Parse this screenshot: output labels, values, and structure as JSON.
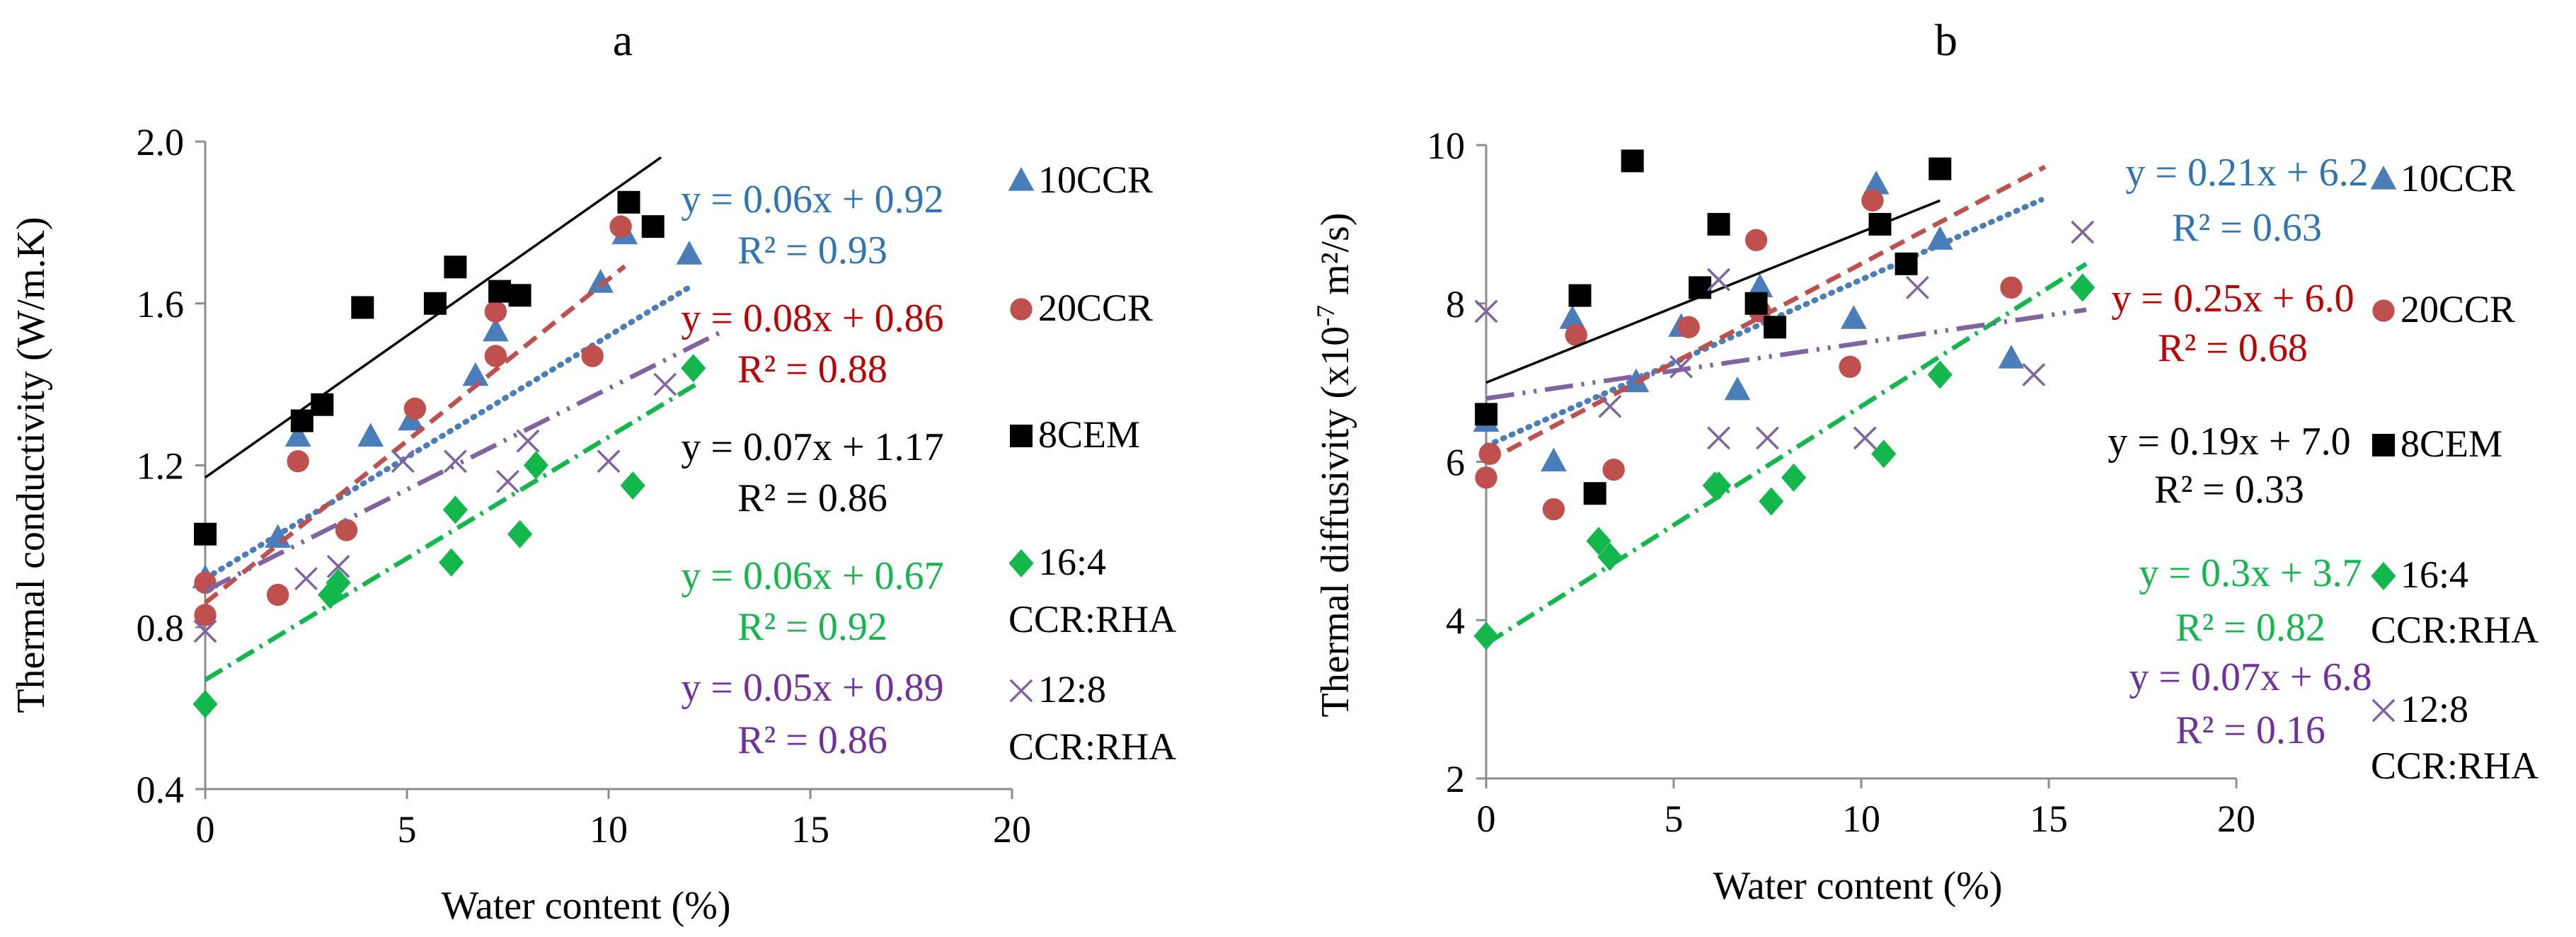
{
  "figure": {
    "panel_a_label": "a",
    "panel_b_label": "b",
    "colors": {
      "10CCR": "#4a7ebb",
      "20CCR": "#c0504d",
      "8CEM": "#000000",
      "16:4 CCR:RHA": "#12b84c",
      "12:8 CCR:RHA": "#8064a2",
      "eq_10CCR": "#2e75b6",
      "eq_20CCR": "#c00000",
      "eq_8CEM": "#000000",
      "eq_164": "#12b84c",
      "eq_128": "#7030a0",
      "axis": "#8c8c8c"
    }
  },
  "chart_data": [
    {
      "type": "scatter",
      "panel": "a",
      "title": "a",
      "xlabel": "Water content (%)",
      "ylabel": "Thermal conductivity (W/m.K)",
      "xlim": [
        0,
        20
      ],
      "ylim": [
        0.4,
        2.0
      ],
      "xticks": [
        "0",
        "5",
        "10",
        "15",
        "20"
      ],
      "yticks": [
        "0.4",
        "0.8",
        "1.2",
        "1.6",
        "2.0"
      ],
      "grid": false,
      "series": [
        {
          "name": "10CCR",
          "legend": [
            "10CCR"
          ],
          "marker": "triangle",
          "color": "#4a7ebb",
          "points": [
            [
              0,
              0.92
            ],
            [
              1.8,
              1.02
            ],
            [
              2.3,
              1.27
            ],
            [
              4.1,
              1.27
            ],
            [
              5.1,
              1.31
            ],
            [
              6.7,
              1.42
            ],
            [
              7.2,
              1.53
            ],
            [
              9.8,
              1.65
            ],
            [
              10.4,
              1.77
            ],
            [
              12.0,
              1.72
            ]
          ],
          "trend": {
            "style": "dotted",
            "slope": 0.06,
            "intercept": 0.92,
            "x": [
              0,
              12.1
            ],
            "eq": "y = 0.06x + 0.92",
            "r2": "R² = 0.93",
            "eq_color": "#2e75b6"
          }
        },
        {
          "name": "20CCR",
          "legend": [
            "20CCR"
          ],
          "marker": "circle",
          "color": "#c0504d",
          "points": [
            [
              0,
              0.83
            ],
            [
              0,
              0.91
            ],
            [
              1.8,
              0.88
            ],
            [
              2.3,
              1.21
            ],
            [
              3.5,
              1.04
            ],
            [
              5.2,
              1.34
            ],
            [
              7.2,
              1.47
            ],
            [
              7.2,
              1.58
            ],
            [
              9.6,
              1.47
            ],
            [
              10.3,
              1.79
            ]
          ],
          "trend": {
            "style": "dashed",
            "slope": 0.08,
            "intercept": 0.86,
            "x": [
              0,
              10.4
            ],
            "eq": "y = 0.08x + 0.86",
            "r2": "R² = 0.88",
            "eq_color": "#c00000"
          }
        },
        {
          "name": "8CEM",
          "legend": [
            "8CEM"
          ],
          "marker": "square",
          "color": "#000000",
          "points": [
            [
              0,
              1.03
            ],
            [
              2.4,
              1.31
            ],
            [
              2.9,
              1.35
            ],
            [
              3.9,
              1.59
            ],
            [
              5.7,
              1.6
            ],
            [
              6.2,
              1.69
            ],
            [
              7.3,
              1.63
            ],
            [
              7.8,
              1.62
            ],
            [
              10.5,
              1.85
            ],
            [
              11.1,
              1.79
            ]
          ],
          "trend": {
            "style": "solid",
            "slope": 0.07,
            "intercept": 1.17,
            "x": [
              0,
              11.3
            ],
            "eq": "y = 0.07x + 1.17",
            "r2": "R² = 0.86",
            "eq_color": "#000000"
          }
        },
        {
          "name": "16:4 CCR:RHA",
          "legend": [
            "16:4",
            "CCR:RHA"
          ],
          "marker": "diamond",
          "color": "#12b84c",
          "points": [
            [
              0,
              0.61
            ],
            [
              3.1,
              0.88
            ],
            [
              3.3,
              0.91
            ],
            [
              6.1,
              0.96
            ],
            [
              6.2,
              1.09
            ],
            [
              7.8,
              1.03
            ],
            [
              8.2,
              1.2
            ],
            [
              10.6,
              1.15
            ],
            [
              12.1,
              1.44
            ]
          ],
          "trend": {
            "style": "dashdot",
            "slope": 0.06,
            "intercept": 0.67,
            "x": [
              0,
              12.2
            ],
            "eq": "y = 0.06x + 0.67",
            "r2": "R² = 0.92",
            "eq_color": "#12b84c"
          }
        },
        {
          "name": "12:8 CCR:RHA",
          "legend": [
            "12:8",
            "CCR:RHA"
          ],
          "marker": "x",
          "color": "#8064a2",
          "points": [
            [
              0,
              0.79
            ],
            [
              2.5,
              0.92
            ],
            [
              3.3,
              0.95
            ],
            [
              4.9,
              1.21
            ],
            [
              6.2,
              1.21
            ],
            [
              7.5,
              1.16
            ],
            [
              8.0,
              1.26
            ],
            [
              10.0,
              1.21
            ],
            [
              11.4,
              1.4
            ]
          ],
          "trend": {
            "style": "dashdotdot",
            "slope": 0.05,
            "intercept": 0.89,
            "x": [
              0,
              12.9
            ],
            "eq": "y = 0.05x + 0.89",
            "r2": "R² = 0.86",
            "eq_color": "#7030a0"
          }
        }
      ]
    },
    {
      "type": "scatter",
      "panel": "b",
      "title": "b",
      "xlabel": "Water content (%)",
      "ylabel_main": "Thermal diffusivity (x10",
      "ylabel_sup": "-7",
      "ylabel_tail": " m²/s)",
      "xlim": [
        0,
        20
      ],
      "ylim": [
        2,
        10
      ],
      "xticks": [
        "0",
        "5",
        "10",
        "15",
        "20"
      ],
      "yticks": [
        "2",
        "4",
        "6",
        "8",
        "10"
      ],
      "grid": false,
      "series": [
        {
          "name": "10CCR",
          "legend": [
            "10CCR"
          ],
          "marker": "triangle",
          "color": "#4a7ebb",
          "points": [
            [
              0,
              6.5
            ],
            [
              1.8,
              6.0
            ],
            [
              2.3,
              7.8
            ],
            [
              4.0,
              7.0
            ],
            [
              5.2,
              7.7
            ],
            [
              6.7,
              6.9
            ],
            [
              7.3,
              8.2
            ],
            [
              9.8,
              7.8
            ],
            [
              10.4,
              9.5
            ],
            [
              12.1,
              8.8
            ],
            [
              14.0,
              7.3
            ]
          ],
          "trend": {
            "style": "dotted",
            "slope": 0.21,
            "intercept": 6.2,
            "x": [
              0,
              14.8
            ],
            "eq": "y = 0.21x + 6.2",
            "r2": "R² = 0.63",
            "eq_color": "#2e75b6"
          }
        },
        {
          "name": "20CCR",
          "legend": [
            "20CCR"
          ],
          "marker": "circle",
          "color": "#c0504d",
          "points": [
            [
              0,
              5.8
            ],
            [
              0.1,
              6.1
            ],
            [
              1.8,
              5.4
            ],
            [
              2.4,
              7.6
            ],
            [
              3.4,
              5.9
            ],
            [
              5.4,
              7.7
            ],
            [
              7.2,
              8.8
            ],
            [
              7.3,
              7.9
            ],
            [
              9.7,
              7.2
            ],
            [
              10.3,
              9.3
            ],
            [
              14.0,
              8.2
            ]
          ],
          "trend": {
            "style": "dashed",
            "slope": 0.25,
            "intercept": 6.0,
            "x": [
              0,
              14.9
            ],
            "eq": "y = 0.25x + 6.0",
            "r2": "R² = 0.68",
            "eq_color": "#c00000"
          }
        },
        {
          "name": "8CEM",
          "legend": [
            "8CEM"
          ],
          "marker": "square",
          "color": "#000000",
          "points": [
            [
              0,
              6.6
            ],
            [
              2.5,
              8.1
            ],
            [
              2.9,
              5.6
            ],
            [
              3.9,
              9.8
            ],
            [
              5.7,
              8.2
            ],
            [
              6.2,
              9.0
            ],
            [
              7.2,
              8.0
            ],
            [
              7.7,
              7.7
            ],
            [
              10.5,
              9.0
            ],
            [
              11.2,
              8.5
            ],
            [
              12.1,
              9.7
            ]
          ],
          "trend": {
            "style": "solid",
            "slope": 0.19,
            "intercept": 7.0,
            "x": [
              0,
              12.1
            ],
            "eq": "y = 0.19x + 7.0",
            "r2": "R² = 0.33",
            "eq_color": "#000000"
          }
        },
        {
          "name": "16:4 CCR:RHA",
          "legend": [
            "16:4",
            "CCR:RHA"
          ],
          "marker": "diamond",
          "color": "#12b84c",
          "points": [
            [
              0,
              3.8
            ],
            [
              3.0,
              5.0
            ],
            [
              3.3,
              4.8
            ],
            [
              6.1,
              5.7
            ],
            [
              6.2,
              5.7
            ],
            [
              7.6,
              5.5
            ],
            [
              8.2,
              5.8
            ],
            [
              10.6,
              6.1
            ],
            [
              12.1,
              7.1
            ],
            [
              15.9,
              8.2
            ]
          ],
          "trend": {
            "style": "dashdot",
            "slope": 0.3,
            "intercept": 3.7,
            "x": [
              0,
              16.0
            ],
            "eq": "y = 0.3x + 3.7",
            "r2": "R² = 0.82",
            "eq_color": "#12b84c"
          }
        },
        {
          "name": "12:8 CCR:RHA",
          "legend": [
            "12:8",
            "CCR:RHA"
          ],
          "marker": "x",
          "color": "#8064a2",
          "points": [
            [
              0,
              7.9
            ],
            [
              3.3,
              6.7
            ],
            [
              5.2,
              7.2
            ],
            [
              6.2,
              8.3
            ],
            [
              6.2,
              6.3
            ],
            [
              7.5,
              6.3
            ],
            [
              10.1,
              6.3
            ],
            [
              11.5,
              8.2
            ],
            [
              14.6,
              7.1
            ],
            [
              15.9,
              8.9
            ]
          ],
          "trend": {
            "style": "dashdotdot",
            "slope": 0.07,
            "intercept": 6.8,
            "x": [
              0,
              16.0
            ],
            "eq": "y = 0.07x + 6.8",
            "r2": "R² = 0.16",
            "eq_color": "#7030a0"
          }
        }
      ]
    }
  ]
}
